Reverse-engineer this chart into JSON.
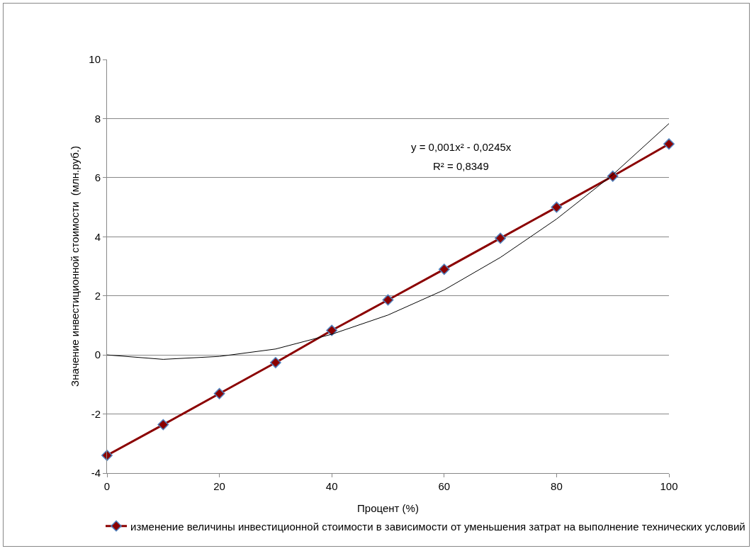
{
  "chart_data": {
    "type": "line",
    "xlabel": "Процент (%)",
    "ylabel": "Значение инвестиционной стоимости  (млн.руб.)",
    "x": [
      0,
      10,
      20,
      30,
      40,
      50,
      60,
      70,
      80,
      90,
      100
    ],
    "series": [
      {
        "name": "изменение величины инвестиционной стоимости в зависимости от уменьшения затрат на выполнение технических условий",
        "color": "#8b0000",
        "values": [
          -3.4,
          -2.36,
          -1.31,
          -0.26,
          0.83,
          1.86,
          2.9,
          3.95,
          5.0,
          6.05,
          7.14
        ]
      },
      {
        "type": "line",
        "color": "#000000",
        "marker": "none",
        "x": [
          0,
          10,
          20,
          30,
          40,
          50,
          60,
          70,
          80,
          90,
          100
        ],
        "values": [
          0,
          -0.15,
          -0.05,
          0.2,
          0.7,
          1.35,
          2.2,
          3.3,
          4.6,
          6.1,
          7.83
        ]
      }
    ],
    "annotations": [
      "y = 0,001x² - 0,0245x",
      "R² = 0,8349"
    ],
    "xlim": [
      0,
      100
    ],
    "xticks": [
      0,
      20,
      40,
      60,
      80,
      100
    ],
    "ylim": [
      -4,
      10
    ],
    "yticks": [
      -4,
      -2,
      0,
      2,
      4,
      6,
      8,
      10
    ],
    "grid": "y",
    "legend": "bottom",
    "marker": "diamond",
    "line_style": "solid"
  }
}
